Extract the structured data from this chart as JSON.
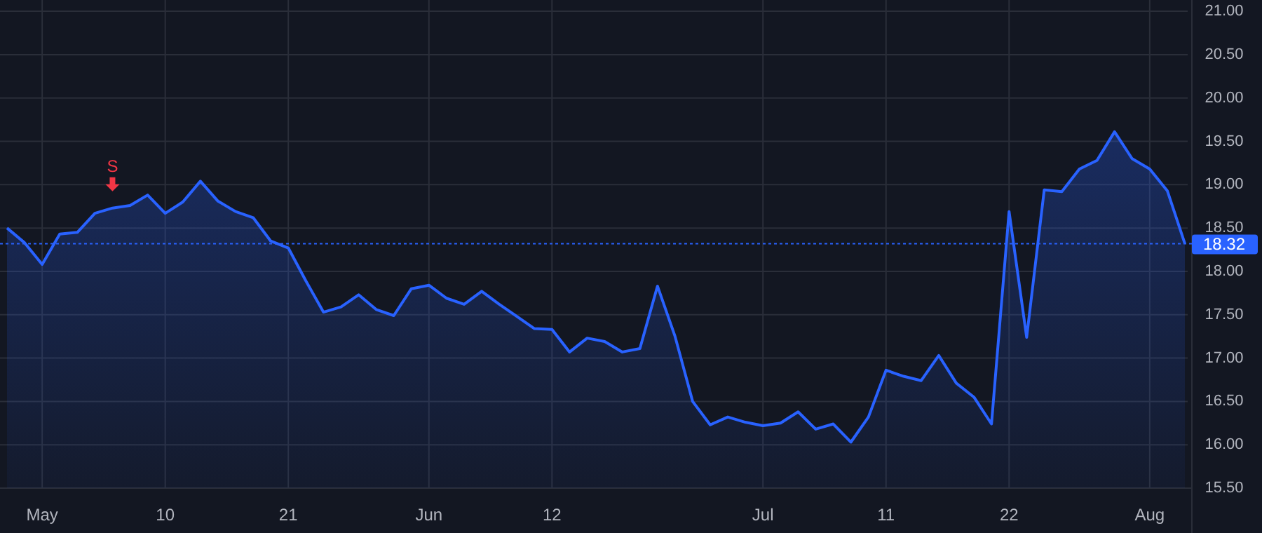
{
  "chart_data": {
    "type": "area",
    "categories": [
      null,
      null,
      "May",
      null,
      null,
      null,
      null,
      null,
      null,
      "10",
      null,
      null,
      null,
      null,
      null,
      null,
      "21",
      null,
      null,
      null,
      null,
      null,
      null,
      null,
      "Jun",
      null,
      null,
      null,
      null,
      null,
      null,
      "12",
      null,
      null,
      null,
      null,
      null,
      null,
      null,
      null,
      null,
      null,
      null,
      "Jul",
      null,
      null,
      null,
      null,
      null,
      null,
      "11",
      null,
      null,
      null,
      null,
      null,
      null,
      "22",
      null,
      null,
      null,
      null,
      null,
      null,
      null,
      "Aug",
      null,
      null
    ],
    "series": [
      {
        "color": "#2962ff",
        "values": [
          18.5,
          18.33,
          18.08,
          18.43,
          18.45,
          18.67,
          18.73,
          18.76,
          18.88,
          18.67,
          18.8,
          19.04,
          18.81,
          18.69,
          18.62,
          18.35,
          18.27,
          17.89,
          17.53,
          17.59,
          17.73,
          17.56,
          17.49,
          17.8,
          17.84,
          17.69,
          17.62,
          17.77,
          17.62,
          17.48,
          17.34,
          17.33,
          17.07,
          17.23,
          17.19,
          17.07,
          17.11,
          17.83,
          17.25,
          16.5,
          16.23,
          16.32,
          16.26,
          16.22,
          16.25,
          16.38,
          16.18,
          16.24,
          16.03,
          16.32,
          16.86,
          16.79,
          16.74,
          17.03,
          16.71,
          16.55,
          16.24,
          18.69,
          17.24,
          18.94,
          18.92,
          19.18,
          19.28,
          19.61,
          19.3,
          19.18,
          18.93,
          18.32
        ]
      }
    ],
    "ylim": [
      15.5,
      21.13
    ],
    "yticks": [
      {
        "value": 15.5,
        "label": "15.50"
      },
      {
        "value": 16,
        "label": "16.00"
      },
      {
        "value": 16.5,
        "label": "16.50"
      },
      {
        "value": 17,
        "label": "17.00"
      },
      {
        "value": 17.5,
        "label": "17.50"
      },
      {
        "value": 18,
        "label": "18.00"
      },
      {
        "value": 18.5,
        "label": "18.50"
      },
      {
        "value": 19,
        "label": "19.00"
      },
      {
        "value": 19.5,
        "label": "19.50"
      },
      {
        "value": 20,
        "label": "20.00"
      },
      {
        "value": 20.5,
        "label": "20.50"
      },
      {
        "value": 21,
        "label": "21.00"
      }
    ],
    "ref_lines": [
      {
        "axis": "y",
        "value": 18.32,
        "label": "18.32",
        "color": "#2962ff",
        "line_style": "dotted"
      }
    ],
    "annotations": [
      {
        "text": "S",
        "y": 18.73
      }
    ],
    "grid": true
  }
}
